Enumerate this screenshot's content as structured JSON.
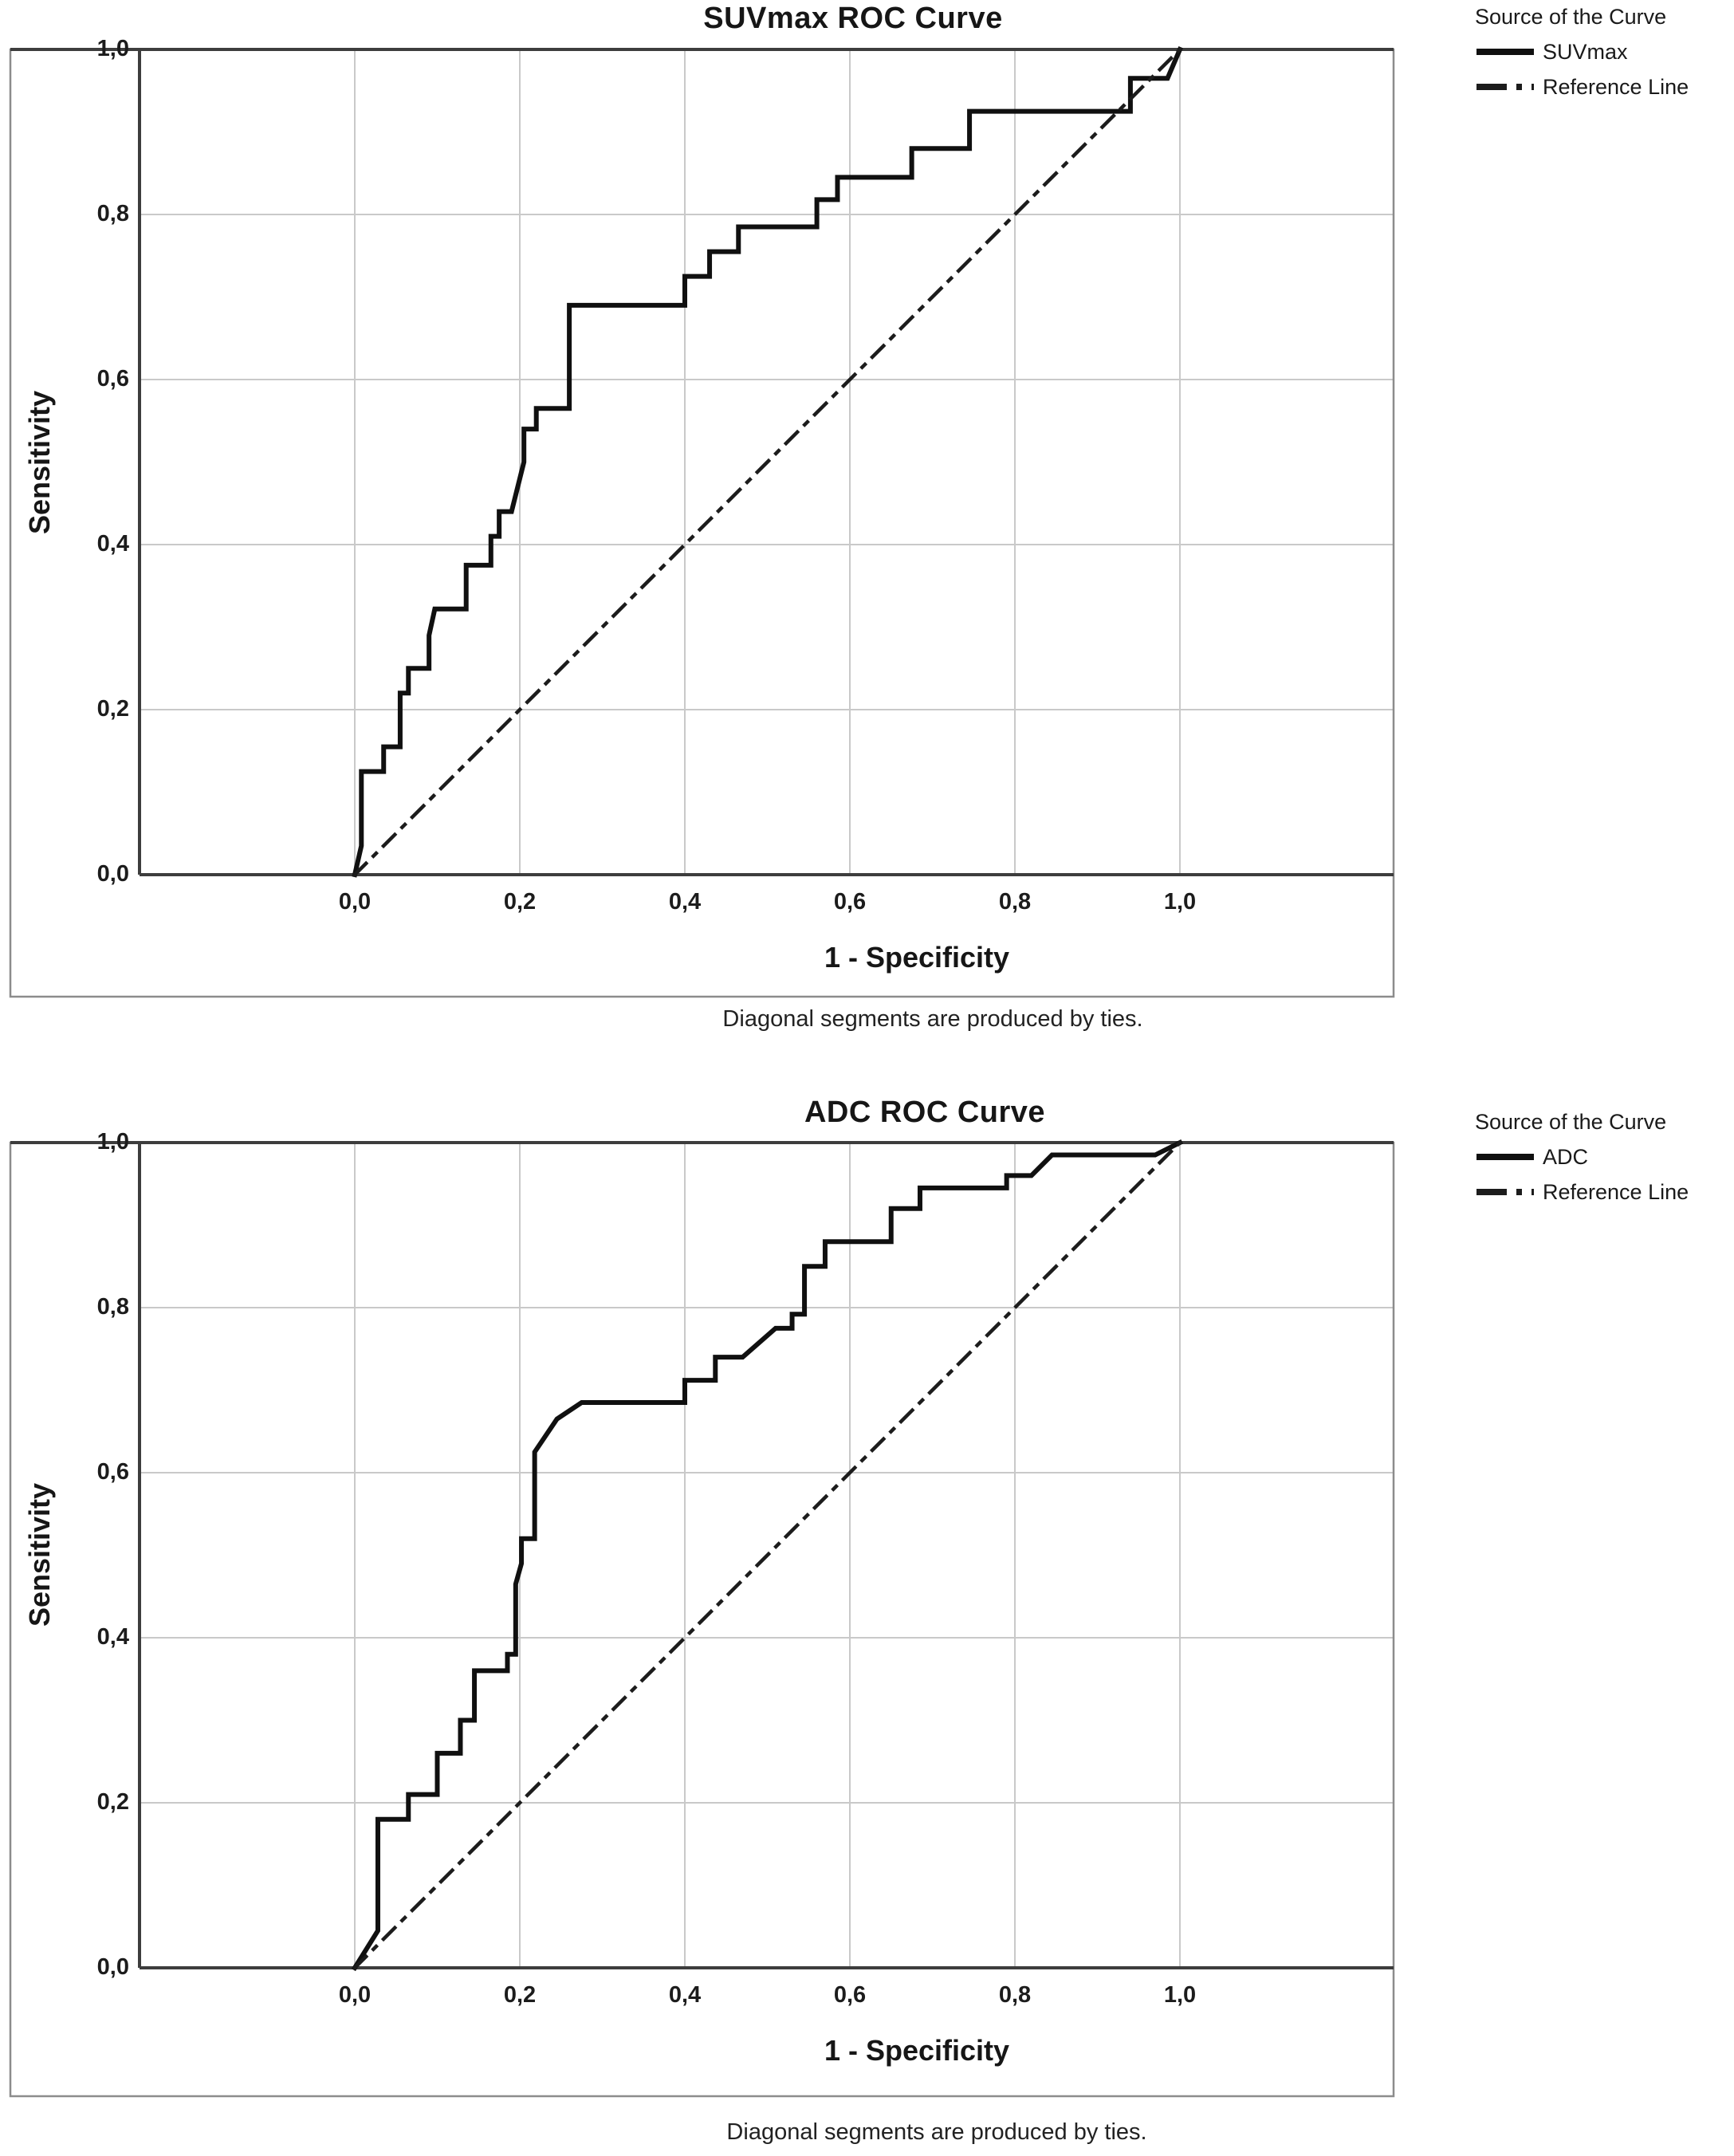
{
  "figure": {
    "type": "SPSS ROC curve output, two stacked panels, grayscale scan",
    "colors": {
      "background": "#ffffff",
      "curve": "#101010",
      "reference_line": "#1c1c1c",
      "gridline": "#c9c9c9",
      "axis": "#3d3d3d",
      "frame": "#8c8c8c",
      "text": "#161616"
    }
  },
  "chart_data": [
    {
      "type": "line",
      "subtype": "roc-step",
      "title": "SUVmax ROC Curve",
      "xlabel": "1 - Specificity",
      "ylabel": "Sensitivity",
      "footnote": "Diagonal segments are produced by ties.",
      "legend": {
        "title": "Source of the Curve",
        "items": [
          {
            "label": "SUVmax",
            "style": "solid"
          },
          {
            "label": "Reference Line",
            "style": "dash-dot"
          }
        ]
      },
      "x_tick_labels": [
        "0,0",
        "0,2",
        "0,4",
        "0,6",
        "0,8",
        "1,0"
      ],
      "y_tick_labels": [
        "0,0",
        "0,2",
        "0,4",
        "0,6",
        "0,8",
        "1,0"
      ],
      "tick_values": [
        0,
        0.2,
        0.4,
        0.6,
        0.8,
        1.0
      ],
      "xlim": [
        -0.26,
        1.26
      ],
      "ylim": [
        0,
        1
      ],
      "grid": true,
      "legend_position": "top-right-outside",
      "series": [
        {
          "name": "SUVmax",
          "style": "solid",
          "points": [
            [
              0,
              0
            ],
            [
              0.008,
              0.035
            ],
            [
              0.008,
              0.125
            ],
            [
              0.035,
              0.125
            ],
            [
              0.035,
              0.155
            ],
            [
              0.055,
              0.155
            ],
            [
              0.055,
              0.22
            ],
            [
              0.065,
              0.22
            ],
            [
              0.065,
              0.25
            ],
            [
              0.09,
              0.25
            ],
            [
              0.09,
              0.29
            ],
            [
              0.097,
              0.322
            ],
            [
              0.135,
              0.322
            ],
            [
              0.135,
              0.375
            ],
            [
              0.165,
              0.375
            ],
            [
              0.165,
              0.41
            ],
            [
              0.175,
              0.41
            ],
            [
              0.175,
              0.44
            ],
            [
              0.19,
              0.44
            ],
            [
              0.205,
              0.5
            ],
            [
              0.205,
              0.54
            ],
            [
              0.22,
              0.54
            ],
            [
              0.22,
              0.565
            ],
            [
              0.26,
              0.565
            ],
            [
              0.26,
              0.69
            ],
            [
              0.4,
              0.69
            ],
            [
              0.4,
              0.725
            ],
            [
              0.43,
              0.725
            ],
            [
              0.43,
              0.755
            ],
            [
              0.465,
              0.755
            ],
            [
              0.465,
              0.785
            ],
            [
              0.56,
              0.785
            ],
            [
              0.56,
              0.818
            ],
            [
              0.585,
              0.818
            ],
            [
              0.585,
              0.845
            ],
            [
              0.675,
              0.845
            ],
            [
              0.675,
              0.88
            ],
            [
              0.745,
              0.88
            ],
            [
              0.745,
              0.925
            ],
            [
              0.94,
              0.925
            ],
            [
              0.94,
              0.965
            ],
            [
              0.985,
              0.965
            ],
            [
              1,
              1
            ]
          ]
        },
        {
          "name": "Reference Line",
          "style": "dash-dot",
          "points": [
            [
              0,
              0
            ],
            [
              1,
              1
            ]
          ]
        }
      ]
    },
    {
      "type": "line",
      "subtype": "roc-step",
      "title": "ADC ROC Curve",
      "xlabel": "1 - Specificity",
      "ylabel": "Sensitivity",
      "footnote": "Diagonal segments are produced by ties.",
      "legend": {
        "title": "Source of the Curve",
        "items": [
          {
            "label": "ADC",
            "style": "solid"
          },
          {
            "label": "Reference Line",
            "style": "dash-dot"
          }
        ]
      },
      "x_tick_labels": [
        "0,0",
        "0,2",
        "0,4",
        "0,6",
        "0,8",
        "1,0"
      ],
      "y_tick_labels": [
        "0,0",
        "0,2",
        "0,4",
        "0,6",
        "0,8",
        "1,0"
      ],
      "tick_values": [
        0,
        0.2,
        0.4,
        0.6,
        0.8,
        1.0
      ],
      "xlim": [
        -0.26,
        1.26
      ],
      "ylim": [
        0,
        1
      ],
      "grid": true,
      "legend_position": "top-right-outside",
      "series": [
        {
          "name": "ADC",
          "style": "solid",
          "points": [
            [
              0,
              0
            ],
            [
              0.028,
              0.045
            ],
            [
              0.028,
              0.18
            ],
            [
              0.065,
              0.18
            ],
            [
              0.065,
              0.21
            ],
            [
              0.1,
              0.21
            ],
            [
              0.1,
              0.26
            ],
            [
              0.128,
              0.26
            ],
            [
              0.128,
              0.3
            ],
            [
              0.145,
              0.3
            ],
            [
              0.145,
              0.36
            ],
            [
              0.185,
              0.36
            ],
            [
              0.185,
              0.38
            ],
            [
              0.195,
              0.38
            ],
            [
              0.195,
              0.465
            ],
            [
              0.202,
              0.49
            ],
            [
              0.202,
              0.52
            ],
            [
              0.218,
              0.52
            ],
            [
              0.218,
              0.625
            ],
            [
              0.245,
              0.665
            ],
            [
              0.275,
              0.685
            ],
            [
              0.4,
              0.685
            ],
            [
              0.4,
              0.712
            ],
            [
              0.437,
              0.712
            ],
            [
              0.437,
              0.74
            ],
            [
              0.47,
              0.74
            ],
            [
              0.51,
              0.775
            ],
            [
              0.53,
              0.775
            ],
            [
              0.53,
              0.792
            ],
            [
              0.545,
              0.792
            ],
            [
              0.545,
              0.85
            ],
            [
              0.57,
              0.85
            ],
            [
              0.57,
              0.88
            ],
            [
              0.65,
              0.88
            ],
            [
              0.65,
              0.92
            ],
            [
              0.685,
              0.92
            ],
            [
              0.685,
              0.945
            ],
            [
              0.79,
              0.945
            ],
            [
              0.79,
              0.96
            ],
            [
              0.82,
              0.96
            ],
            [
              0.845,
              0.985
            ],
            [
              0.97,
              0.985
            ],
            [
              1,
              1
            ]
          ]
        },
        {
          "name": "Reference Line",
          "style": "dash-dot",
          "points": [
            [
              0,
              0
            ],
            [
              1,
              1
            ]
          ]
        }
      ]
    }
  ]
}
